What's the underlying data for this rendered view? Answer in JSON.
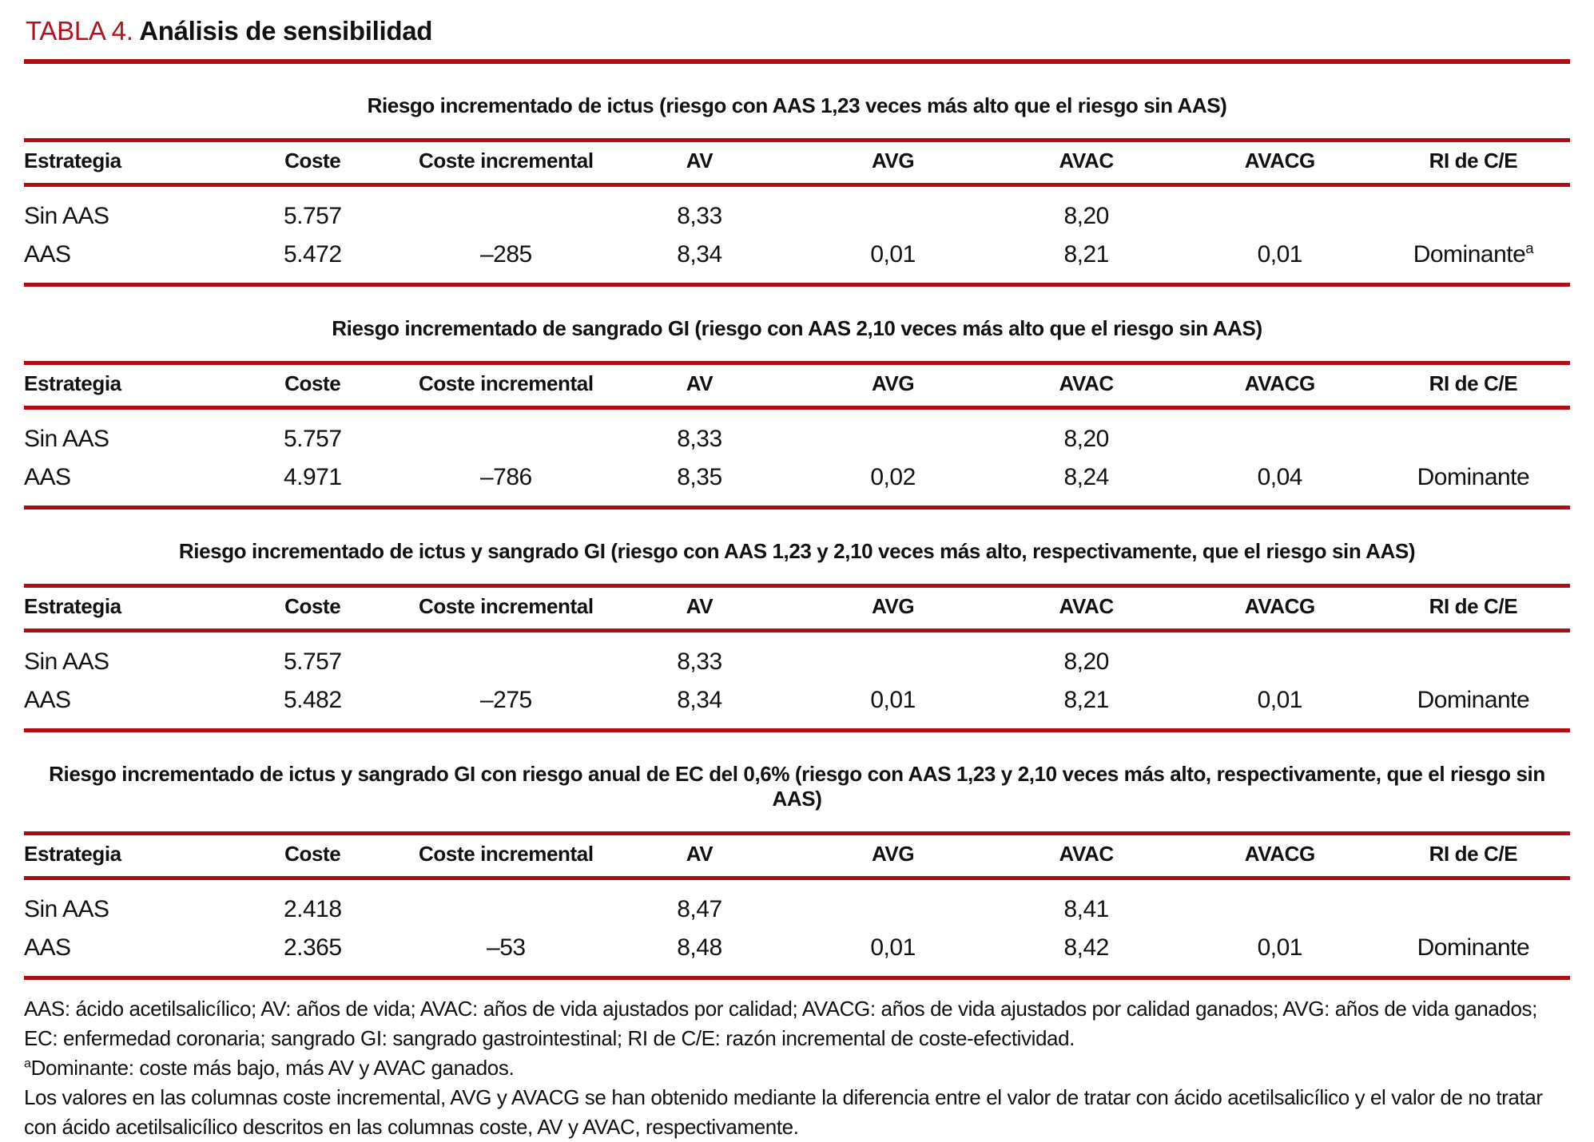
{
  "page": {
    "title_label": "TABLA 4.",
    "title_text": "Análisis de sensibilidad"
  },
  "colors": {
    "rule_red": "#AE0E12",
    "title_red": "#B5121B"
  },
  "columns": [
    "Estrategia",
    "Coste",
    "Coste incremental",
    "AV",
    "AVG",
    "AVAC",
    "AVACG",
    "RI de C/E"
  ],
  "sections": [
    {
      "subtitle": "Riesgo incrementado de ictus (riesgo con AAS 1,23 veces más alto que el riesgo sin AAS)",
      "rows": [
        {
          "cells": [
            "Sin AAS",
            "5.757",
            "",
            "8,33",
            "",
            "8,20",
            "",
            ""
          ],
          "ri_sup": ""
        },
        {
          "cells": [
            "AAS",
            "5.472",
            "–285",
            "8,34",
            "0,01",
            "8,21",
            "0,01",
            "Dominante"
          ],
          "ri_sup": "a"
        }
      ]
    },
    {
      "subtitle": "Riesgo incrementado de sangrado GI (riesgo con AAS 2,10 veces más alto que el riesgo sin AAS)",
      "rows": [
        {
          "cells": [
            "Sin AAS",
            "5.757",
            "",
            "8,33",
            "",
            "8,20",
            "",
            ""
          ],
          "ri_sup": ""
        },
        {
          "cells": [
            "AAS",
            "4.971",
            "–786",
            "8,35",
            "0,02",
            "8,24",
            "0,04",
            "Dominante"
          ],
          "ri_sup": ""
        }
      ]
    },
    {
      "subtitle": "Riesgo incrementado de ictus y sangrado GI (riesgo con AAS 1,23 y 2,10 veces más alto, respectivamente, que el riesgo sin AAS)",
      "rows": [
        {
          "cells": [
            "Sin AAS",
            "5.757",
            "",
            "8,33",
            "",
            "8,20",
            "",
            ""
          ],
          "ri_sup": ""
        },
        {
          "cells": [
            "AAS",
            "5.482",
            "–275",
            "8,34",
            "0,01",
            "8,21",
            "0,01",
            "Dominante"
          ],
          "ri_sup": ""
        }
      ]
    },
    {
      "subtitle": "Riesgo incrementado de ictus y sangrado GI con riesgo anual de EC del 0,6% (riesgo con AAS 1,23 y 2,10 veces más alto, respectivamente, que el riesgo sin AAS)",
      "rows": [
        {
          "cells": [
            "Sin AAS",
            "2.418",
            "",
            "8,47",
            "",
            "8,41",
            "",
            ""
          ],
          "ri_sup": ""
        },
        {
          "cells": [
            "AAS",
            "2.365",
            "–53",
            "8,48",
            "0,01",
            "8,42",
            "0,01",
            "Dominante"
          ],
          "ri_sup": ""
        }
      ]
    }
  ],
  "footnotes": {
    "abbreviations": "AAS: ácido acetilsalicílico; AV: años de vida; AVAC: años de vida ajustados por calidad; AVACG: años de vida ajustados por calidad ganados; AVG: años de vida ganados; EC: enfermedad coronaria; sangrado GI: sangrado gastrointestinal; RI de C/E: razón incremental de coste-efectividad.",
    "dominant_sup": "a",
    "dominant_note": "Dominante: coste más bajo, más AV y AVAC ganados.",
    "calculation_note": "Los valores en las columnas coste incremental, AVG y AVACG se han obtenido mediante la diferencia entre el valor de tratar con ácido acetilsalicílico y el valor de no tratar con ácido acetilsalicílico descritos en las columnas coste, AV y AVAC, respectivamente."
  }
}
